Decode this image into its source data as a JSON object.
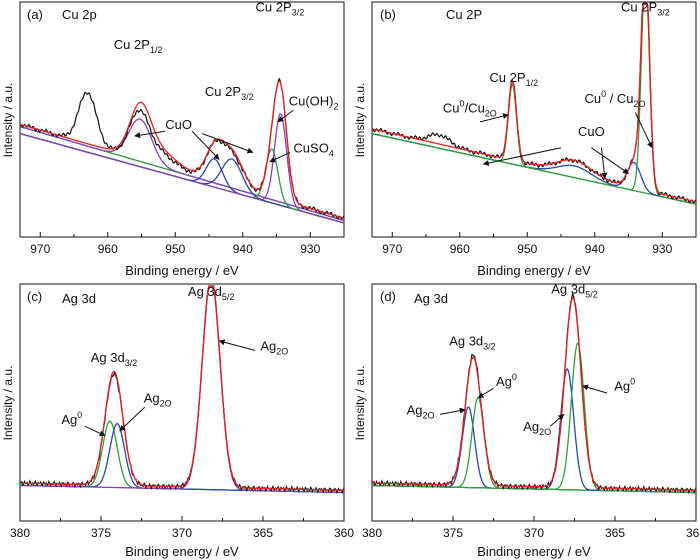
{
  "chart_data": [
    {
      "type": "line",
      "panel_label": "(a)",
      "title": "Cu 2p",
      "xlabel": "Binding energy / eV",
      "ylabel": "Intensity / a.u.",
      "xlim": [
        973,
        925
      ],
      "ylim": [
        0,
        1.0
      ],
      "xticks": [
        970,
        960,
        950,
        940,
        930
      ],
      "series": [
        {
          "name": "Raw",
          "color": "#111111",
          "kind": "raw",
          "baseline": [
            [
              973,
              0.48
            ],
            [
              925,
              0.08
            ]
          ],
          "peaks": [
            [
              963.0,
              0.22,
              1.3
            ],
            [
              955.4,
              0.17,
              1.4
            ],
            [
              953.0,
              0.06,
              2.5
            ],
            [
              944.2,
              0.13,
              1.3
            ],
            [
              941.6,
              0.13,
              1.6
            ],
            [
              935.5,
              0.19,
              0.9
            ],
            [
              934.3,
              0.41,
              0.9
            ]
          ]
        },
        {
          "name": "Fitted envelope",
          "color": "#e8231f",
          "kind": "sum",
          "baseline": [
            [
              973,
              0.48
            ],
            [
              925,
              0.08
            ]
          ],
          "peaks": [
            [
              955.2,
              0.19,
              1.5
            ],
            [
              953.0,
              0.07,
              2.8
            ],
            [
              944.2,
              0.13,
              1.3
            ],
            [
              941.6,
              0.14,
              1.6
            ],
            [
              935.5,
              0.19,
              0.9
            ],
            [
              934.3,
              0.41,
              0.9
            ]
          ]
        },
        {
          "name": "Background",
          "color": "#2f8f3f",
          "kind": "component",
          "baseline": [
            [
              973,
              0.47
            ],
            [
              925,
              0.07
            ]
          ],
          "peaks": []
        },
        {
          "name": "CuO",
          "color": "#8a3fb4",
          "kind": "component",
          "baseline": [
            [
              973,
              0.47
            ],
            [
              925,
              0.07
            ]
          ],
          "peaks": [
            [
              955.2,
              0.18,
              1.7
            ]
          ]
        },
        {
          "name": "CuO (2p3/2)",
          "color": "#2b46a8",
          "kind": "component",
          "baseline": [
            [
              973,
              0.44
            ],
            [
              925,
              0.06
            ]
          ],
          "peaks": [
            [
              944.2,
              0.12,
              1.2
            ]
          ]
        },
        {
          "name": "CuO (2p3/2) b",
          "color": "#2b46a8",
          "kind": "component",
          "baseline": [
            [
              973,
              0.44
            ],
            [
              925,
              0.06
            ]
          ],
          "peaks": [
            [
              941.6,
              0.14,
              1.5
            ]
          ]
        },
        {
          "name": "CuSO4",
          "color": "#2f9f3f",
          "kind": "component",
          "baseline": [
            [
              973,
              0.44
            ],
            [
              925,
              0.06
            ]
          ],
          "peaks": [
            [
              935.7,
              0.23,
              0.9
            ]
          ]
        },
        {
          "name": "Cu(OH)2",
          "color": "#8a3fb4",
          "kind": "component",
          "baseline": [
            [
              973,
              0.44
            ],
            [
              925,
              0.06
            ]
          ],
          "peaks": [
            [
              934.4,
              0.39,
              0.9
            ]
          ]
        }
      ],
      "annotations": [
        {
          "text": "Cu 2P",
          "sub": "1/2",
          "x": 955.5,
          "y": 0.8
        },
        {
          "text": "Cu 2P",
          "sub": "3/2",
          "x": 942.0,
          "y": 0.6
        },
        {
          "text": "Cu 2P",
          "sub": "3/2",
          "x": 934.5,
          "y": 0.96
        },
        {
          "text": "CuO",
          "sub": "",
          "x": 949.5,
          "y": 0.46
        },
        {
          "text": "Cu(OH)",
          "sub": "2",
          "x": 929.5,
          "y": 0.56
        },
        {
          "text": "CuSO",
          "sub": "4",
          "x": 929.5,
          "y": 0.36
        }
      ],
      "arrows": [
        {
          "from": [
            951.5,
            0.45
          ],
          "to": [
            956.0,
            0.43
          ]
        },
        {
          "from": [
            947.5,
            0.45
          ],
          "to": [
            943.5,
            0.33
          ]
        },
        {
          "from": [
            946.0,
            0.44
          ],
          "to": [
            938.5,
            0.36
          ]
        },
        {
          "from": [
            932.5,
            0.54
          ],
          "to": [
            934.8,
            0.49
          ]
        },
        {
          "from": [
            933.0,
            0.36
          ],
          "to": [
            936.0,
            0.32
          ]
        }
      ]
    },
    {
      "type": "line",
      "panel_label": "(b)",
      "title": "Cu 2P",
      "xlabel": "Binding energy / eV",
      "ylabel": "Intensity / a.u.",
      "xlim": [
        973,
        925
      ],
      "ylim": [
        0,
        1.0
      ],
      "xticks": [
        970,
        960,
        950,
        940,
        930
      ],
      "series": [
        {
          "name": "Raw",
          "color": "#111111",
          "kind": "raw",
          "baseline": [
            [
              973,
              0.46
            ],
            [
              925,
              0.15
            ]
          ],
          "peaks": [
            [
              963.0,
              0.04,
              1.5
            ],
            [
              952.2,
              0.34,
              0.6
            ],
            [
              943.0,
              0.06,
              2.5
            ],
            [
              934.0,
              0.12,
              1.0
            ],
            [
              932.5,
              0.95,
              0.6
            ]
          ]
        },
        {
          "name": "Fitted envelope",
          "color": "#e8231f",
          "kind": "sum",
          "baseline": [
            [
              973,
              0.46
            ],
            [
              925,
              0.15
            ]
          ],
          "peaks": [
            [
              952.2,
              0.34,
              0.6
            ],
            [
              943.0,
              0.06,
              2.5
            ],
            [
              934.0,
              0.12,
              1.0
            ],
            [
              932.5,
              0.95,
              0.6
            ]
          ]
        },
        {
          "name": "Cu0/Cu2O (2p1/2)",
          "color": "#2f9f3f",
          "kind": "component",
          "baseline": [
            [
              973,
              0.44
            ],
            [
              925,
              0.14
            ]
          ],
          "peaks": [
            [
              952.2,
              0.34,
              0.6
            ]
          ]
        },
        {
          "name": "CuO",
          "color": "#2b46a8",
          "kind": "component",
          "baseline": [
            [
              973,
              0.44
            ],
            [
              925,
              0.14
            ]
          ],
          "peaks": [
            [
              943.0,
              0.05,
              2.5
            ],
            [
              934.2,
              0.12,
              1.0
            ]
          ]
        },
        {
          "name": "Cu0/Cu2O (2p3/2)",
          "color": "#2f9f3f",
          "kind": "component",
          "baseline": [
            [
              973,
              0.44
            ],
            [
              925,
              0.14
            ]
          ],
          "peaks": [
            [
              932.5,
              0.94,
              0.6
            ]
          ]
        }
      ],
      "annotations": [
        {
          "text": "Cu 2P",
          "sub": "1/2",
          "x": 952.0,
          "y": 0.66
        },
        {
          "text": "Cu 2P",
          "sub": "3/2",
          "x": 932.5,
          "y": 0.96
        },
        {
          "text": "Cu",
          "sup": "0",
          "tail": "/Cu",
          "sub": "2O",
          "x": 958.5,
          "y": 0.53
        },
        {
          "text": "CuO",
          "sub": "",
          "x": 940.5,
          "y": 0.43
        },
        {
          "text": "Cu",
          "sup": "0",
          "tail": " / Cu",
          "sub": "2O",
          "x": 937.0,
          "y": 0.57
        }
      ],
      "arrows": [
        {
          "from": [
            957.0,
            0.49
          ],
          "to": [
            952.8,
            0.52
          ]
        },
        {
          "from": [
            945.0,
            0.38
          ],
          "to": [
            956.5,
            0.31
          ]
        },
        {
          "from": [
            940.5,
            0.38
          ],
          "to": [
            935.0,
            0.27
          ]
        },
        {
          "from": [
            939.0,
            0.38
          ],
          "to": [
            938.5,
            0.25
          ]
        },
        {
          "from": [
            934.0,
            0.53
          ],
          "to": [
            931.5,
            0.38
          ]
        }
      ]
    },
    {
      "type": "line",
      "panel_label": "(c)",
      "title": "Ag 3d",
      "xlabel": "Binding energy / eV",
      "ylabel": "Intensity / a.u.",
      "xlim": [
        380,
        360
      ],
      "ylim": [
        0,
        1.0
      ],
      "xticks": [
        380,
        375,
        370,
        365,
        360
      ],
      "series": [
        {
          "name": "Raw",
          "color": "#111111",
          "kind": "raw",
          "baseline": [
            [
              380,
              0.16
            ],
            [
              360,
              0.13
            ]
          ],
          "peaks": [
            [
              374.2,
              0.47,
              0.55
            ],
            [
              368.2,
              0.88,
              0.55
            ]
          ]
        },
        {
          "name": "Fitted envelope",
          "color": "#e8231f",
          "kind": "sum",
          "baseline": [
            [
              380,
              0.16
            ],
            [
              360,
              0.13
            ]
          ],
          "peaks": [
            [
              374.2,
              0.48,
              0.55
            ],
            [
              368.2,
              0.88,
              0.55
            ]
          ]
        },
        {
          "name": "Ag0",
          "color": "#2f9f3f",
          "kind": "component",
          "baseline": [
            [
              380,
              0.15
            ],
            [
              360,
              0.12
            ]
          ],
          "peaks": [
            [
              374.45,
              0.28,
              0.45
            ]
          ]
        },
        {
          "name": "Ag2O",
          "color": "#2b46a8",
          "kind": "component",
          "baseline": [
            [
              380,
              0.15
            ],
            [
              360,
              0.12
            ]
          ],
          "peaks": [
            [
              374.0,
              0.27,
              0.45
            ]
          ]
        },
        {
          "name": "Ag2O (3d5/2)",
          "color": "#8a3fb4",
          "kind": "component",
          "baseline": [
            [
              380,
              0.15
            ],
            [
              360,
              0.12
            ]
          ],
          "peaks": [
            [
              368.2,
              0.9,
              0.55
            ]
          ]
        }
      ],
      "annotations": [
        {
          "text": "Ag 3d",
          "sub": "3/2",
          "x": 374.2,
          "y": 0.67
        },
        {
          "text": "Ag 3d",
          "sub": "5/2",
          "x": 368.2,
          "y": 0.95
        },
        {
          "text": "Ag",
          "sup": "0",
          "x": 376.8,
          "y": 0.41
        },
        {
          "text": "Ag",
          "sub": "2O",
          "x": 371.5,
          "y": 0.5
        },
        {
          "text": "Ag",
          "sub": "2O",
          "x": 364.3,
          "y": 0.72
        }
      ],
      "arrows": [
        {
          "from": [
            376.0,
            0.4
          ],
          "to": [
            374.75,
            0.36
          ]
        },
        {
          "from": [
            372.3,
            0.48
          ],
          "to": [
            373.85,
            0.38
          ]
        },
        {
          "from": [
            365.5,
            0.72
          ],
          "to": [
            367.7,
            0.76
          ]
        }
      ]
    },
    {
      "type": "line",
      "panel_label": "(d)",
      "title": "Ag 3d",
      "xlabel": "Binding energy / eV",
      "ylabel": "Intensity / a.u.",
      "xlim": [
        380,
        360
      ],
      "ylim": [
        0,
        1.0
      ],
      "xticks": [
        380,
        375,
        370,
        365,
        360
      ],
      "series": [
        {
          "name": "Raw",
          "color": "#111111",
          "kind": "raw",
          "baseline": [
            [
              380,
              0.16
            ],
            [
              360,
              0.13
            ]
          ],
          "peaks": [
            [
              373.75,
              0.55,
              0.5
            ],
            [
              367.6,
              0.81,
              0.5
            ]
          ]
        },
        {
          "name": "Fitted envelope",
          "color": "#e8231f",
          "kind": "sum",
          "baseline": [
            [
              380,
              0.16
            ],
            [
              360,
              0.13
            ]
          ],
          "peaks": [
            [
              373.75,
              0.54,
              0.5
            ],
            [
              367.6,
              0.8,
              0.5
            ]
          ]
        },
        {
          "name": "Ag2O (3d3/2)",
          "color": "#2b46a8",
          "kind": "component",
          "baseline": [
            [
              380,
              0.15
            ],
            [
              360,
              0.12
            ]
          ],
          "peaks": [
            [
              374.05,
              0.34,
              0.38
            ]
          ]
        },
        {
          "name": "Ag0 (3d3/2)",
          "color": "#2f9f3f",
          "kind": "component",
          "baseline": [
            [
              380,
              0.15
            ],
            [
              360,
              0.12
            ]
          ],
          "peaks": [
            [
              373.45,
              0.38,
              0.38
            ]
          ]
        },
        {
          "name": "Ag2O (3d5/2)",
          "color": "#2b46a8",
          "kind": "component",
          "baseline": [
            [
              380,
              0.15
            ],
            [
              360,
              0.12
            ]
          ],
          "peaks": [
            [
              367.95,
              0.51,
              0.4
            ]
          ]
        },
        {
          "name": "Ag0 (3d5/2)",
          "color": "#2f9f3f",
          "kind": "component",
          "baseline": [
            [
              380,
              0.15
            ],
            [
              360,
              0.12
            ]
          ],
          "peaks": [
            [
              367.3,
              0.62,
              0.4
            ]
          ]
        }
      ],
      "annotations": [
        {
          "text": "Ag 3d",
          "sub": "3/2",
          "x": 373.8,
          "y": 0.74
        },
        {
          "text": "Ag 3d",
          "sub": "5/2",
          "x": 367.5,
          "y": 0.96
        },
        {
          "text": "Ag",
          "sup": "0",
          "x": 371.7,
          "y": 0.57
        },
        {
          "text": "Ag",
          "sub": "2O",
          "x": 377.0,
          "y": 0.45
        },
        {
          "text": "Ag",
          "sub": "2O",
          "x": 369.8,
          "y": 0.38
        },
        {
          "text": "Ag",
          "sup": "0",
          "x": 364.4,
          "y": 0.55
        }
      ],
      "arrows": [
        {
          "from": [
            372.5,
            0.56
          ],
          "to": [
            373.45,
            0.52
          ]
        },
        {
          "from": [
            375.8,
            0.45
          ],
          "to": [
            374.25,
            0.47
          ]
        },
        {
          "from": [
            369.0,
            0.4
          ],
          "to": [
            368.15,
            0.45
          ]
        },
        {
          "from": [
            365.5,
            0.54
          ],
          "to": [
            367.0,
            0.57
          ]
        }
      ]
    }
  ]
}
